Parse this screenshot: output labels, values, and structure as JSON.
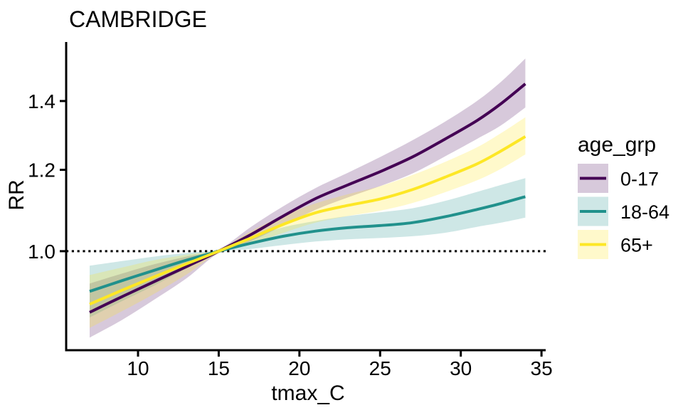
{
  "title": "CAMBRIDGE",
  "axes": {
    "x": {
      "label": "tmax_C",
      "ticks": [
        10,
        15,
        20,
        25,
        30,
        35
      ],
      "tick_labels": [
        "10",
        "15",
        "20",
        "25",
        "30",
        "35"
      ]
    },
    "y": {
      "label": "RR",
      "ticks": [
        1.0,
        1.2,
        1.4
      ],
      "tick_labels": [
        "1.0",
        "1.2",
        "1.4"
      ]
    }
  },
  "legend": {
    "title": "age_grp",
    "items": [
      {
        "label": "0-17",
        "line_color": "#440154",
        "band_color": "rgba(68,1,84,0.21)"
      },
      {
        "label": "18-64",
        "line_color": "#21918c",
        "band_color": "rgba(33,145,140,0.22)"
      },
      {
        "label": "65+",
        "line_color": "#fde725",
        "band_color": "rgba(253,231,37,0.24)"
      }
    ]
  },
  "reference_line": {
    "y": 1.0,
    "style": "dotted",
    "color": "#000000"
  },
  "chart_data": {
    "type": "line",
    "title": "CAMBRIDGE",
    "xlabel": "tmax_C",
    "ylabel": "RR",
    "yscale": "log",
    "grid": false,
    "legend_position": "right",
    "xlim": [
      5.547,
      35.26
    ],
    "ylim": [
      0.801,
      1.598
    ],
    "x": [
      7,
      9,
      11,
      13,
      15,
      17,
      19,
      21,
      23,
      25,
      27,
      29,
      31,
      32.5,
      34
    ],
    "series": [
      {
        "name": "0-17",
        "color": "#440154",
        "band_color": "rgba(68,1,84,0.21)",
        "values": [
          0.872,
          0.903,
          0.934,
          0.966,
          1.0,
          1.038,
          1.082,
          1.125,
          1.16,
          1.195,
          1.235,
          1.285,
          1.34,
          1.392,
          1.455
        ],
        "upper": [
          0.93,
          0.951,
          0.971,
          0.988,
          1.004,
          1.056,
          1.106,
          1.152,
          1.192,
          1.235,
          1.282,
          1.336,
          1.4,
          1.462,
          1.54
        ],
        "lower": [
          0.824,
          0.857,
          0.897,
          0.941,
          0.996,
          1.023,
          1.059,
          1.097,
          1.128,
          1.157,
          1.19,
          1.236,
          1.286,
          1.326,
          1.38
        ]
      },
      {
        "name": "18-64",
        "color": "#21918c",
        "band_color": "rgba(33,145,140,0.22)",
        "values": [
          0.914,
          0.936,
          0.958,
          0.98,
          1.0,
          1.018,
          1.034,
          1.046,
          1.054,
          1.059,
          1.066,
          1.08,
          1.098,
          1.113,
          1.13
        ],
        "upper": [
          0.968,
          0.978,
          0.988,
          0.996,
          1.004,
          1.032,
          1.055,
          1.07,
          1.082,
          1.091,
          1.101,
          1.119,
          1.142,
          1.16,
          1.178
        ],
        "lower": [
          0.862,
          0.894,
          0.926,
          0.962,
          0.996,
          1.005,
          1.014,
          1.022,
          1.027,
          1.03,
          1.034,
          1.042,
          1.056,
          1.066,
          1.078
        ]
      },
      {
        "name": "65+",
        "color": "#fde725",
        "band_color": "rgba(253,231,37,0.24)",
        "values": [
          0.888,
          0.916,
          0.944,
          0.972,
          1.0,
          1.03,
          1.062,
          1.09,
          1.108,
          1.124,
          1.148,
          1.18,
          1.216,
          1.252,
          1.293
        ],
        "upper": [
          0.948,
          0.964,
          0.98,
          0.992,
          1.004,
          1.046,
          1.083,
          1.113,
          1.136,
          1.157,
          1.186,
          1.221,
          1.262,
          1.303,
          1.35
        ],
        "lower": [
          0.842,
          0.874,
          0.909,
          0.949,
          0.996,
          1.016,
          1.042,
          1.066,
          1.082,
          1.095,
          1.114,
          1.141,
          1.172,
          1.203,
          1.242
        ]
      }
    ]
  }
}
